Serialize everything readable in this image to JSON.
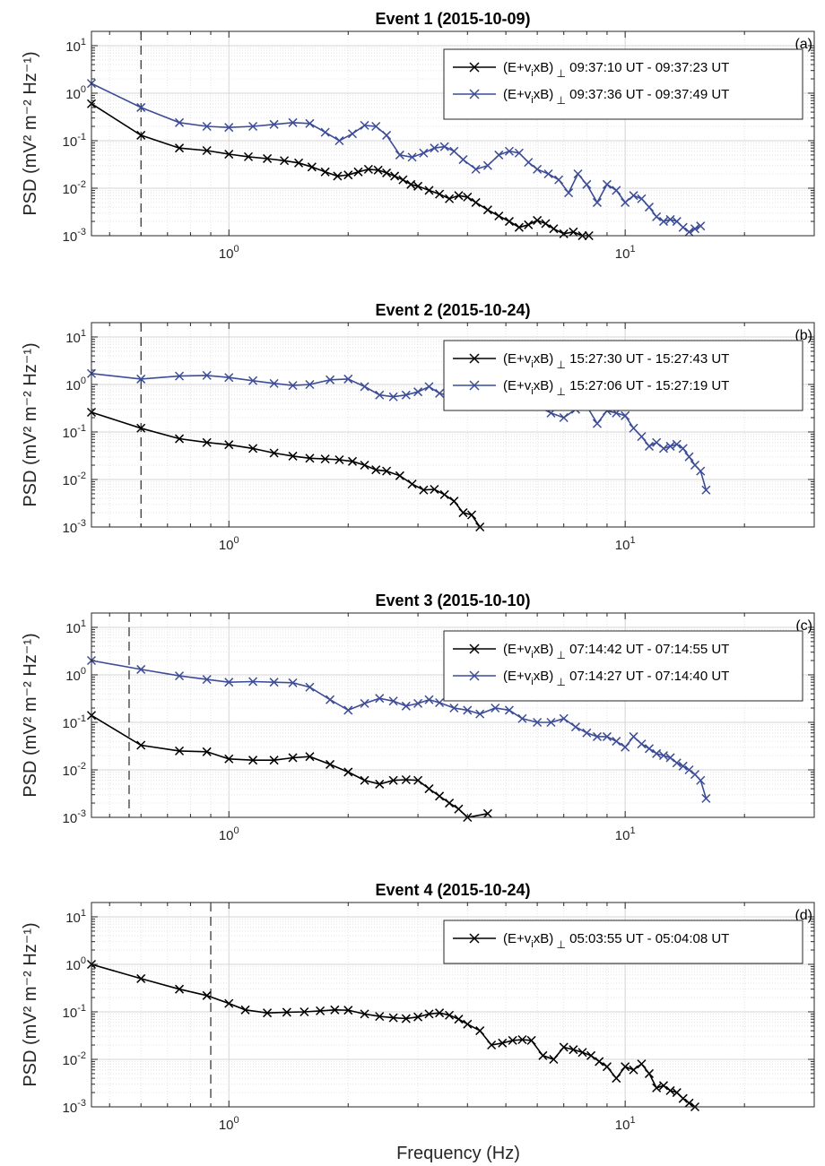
{
  "figure": {
    "xlabel": "Frequency (Hz)"
  },
  "chart_data": [
    {
      "type": "line",
      "title": "Event 1 (2015-10-09)",
      "panel_tag": "(a)",
      "ylabel": "PSD (mV² m⁻² Hz⁻¹)",
      "xlabel": "",
      "xscale": "log",
      "yscale": "log",
      "xlim": [
        0.45,
        30
      ],
      "ylim": [
        0.001,
        20
      ],
      "x_ticks": [
        "10^0",
        "10^1"
      ],
      "y_ticks": [
        "10^-3",
        "10^-2",
        "10^-1",
        "10^0",
        "10^1"
      ],
      "grid": true,
      "legend_position": "top-right",
      "vline_x": 0.6,
      "series": [
        {
          "name": "(E+v_ixB)_⊥ 09:37:10 UT - 09:37:23 UT",
          "color": "#000000",
          "x": [
            0.45,
            0.6,
            0.75,
            0.88,
            1.0,
            1.12,
            1.25,
            1.38,
            1.5,
            1.62,
            1.75,
            1.88,
            2.0,
            2.12,
            2.25,
            2.38,
            2.5,
            2.62,
            2.75,
            2.88,
            3.0,
            3.2,
            3.4,
            3.6,
            3.8,
            4.0,
            4.2,
            4.5,
            4.8,
            5.1,
            5.4,
            5.7,
            6.0,
            6.3,
            6.6,
            7.0,
            7.4,
            7.8,
            8.1
          ],
          "y": [
            0.6,
            0.13,
            0.07,
            0.062,
            0.052,
            0.046,
            0.042,
            0.038,
            0.034,
            0.028,
            0.022,
            0.018,
            0.019,
            0.022,
            0.025,
            0.024,
            0.021,
            0.018,
            0.015,
            0.012,
            0.011,
            0.009,
            0.0075,
            0.006,
            0.007,
            0.0065,
            0.005,
            0.0035,
            0.0026,
            0.002,
            0.0015,
            0.0017,
            0.0021,
            0.0018,
            0.0014,
            0.0011,
            0.0012,
            0.001,
            0.001
          ]
        },
        {
          "name": "(E+v_ixB)_⊥ 09:37:36 UT - 09:37:49 UT",
          "color": "#3c4c97",
          "x": [
            0.45,
            0.6,
            0.75,
            0.88,
            1.0,
            1.15,
            1.3,
            1.45,
            1.6,
            1.75,
            1.9,
            2.05,
            2.2,
            2.35,
            2.5,
            2.7,
            2.9,
            3.1,
            3.3,
            3.5,
            3.7,
            3.9,
            4.2,
            4.5,
            4.8,
            5.1,
            5.4,
            5.7,
            6.0,
            6.4,
            6.8,
            7.2,
            7.6,
            8.0,
            8.5,
            9.0,
            9.5,
            10.0,
            10.5,
            11.0,
            11.5,
            12.0,
            12.5,
            13.0,
            13.5,
            14.0,
            14.5,
            15.0,
            15.5
          ],
          "y": [
            1.6,
            0.5,
            0.24,
            0.2,
            0.19,
            0.2,
            0.22,
            0.24,
            0.23,
            0.15,
            0.1,
            0.14,
            0.21,
            0.2,
            0.13,
            0.05,
            0.045,
            0.055,
            0.07,
            0.075,
            0.06,
            0.04,
            0.025,
            0.03,
            0.05,
            0.06,
            0.055,
            0.035,
            0.025,
            0.02,
            0.015,
            0.008,
            0.02,
            0.012,
            0.005,
            0.012,
            0.009,
            0.005,
            0.007,
            0.006,
            0.004,
            0.0025,
            0.002,
            0.0022,
            0.002,
            0.0015,
            0.0012,
            0.0014,
            0.0016
          ]
        }
      ]
    },
    {
      "type": "line",
      "title": "Event 2 (2015-10-24)",
      "panel_tag": "(b)",
      "ylabel": "PSD (mV² m⁻² Hz⁻¹)",
      "xlabel": "",
      "xscale": "log",
      "yscale": "log",
      "xlim": [
        0.45,
        30
      ],
      "ylim": [
        0.001,
        20
      ],
      "x_ticks": [
        "10^0",
        "10^1"
      ],
      "y_ticks": [
        "10^-3",
        "10^-2",
        "10^-1",
        "10^0",
        "10^1"
      ],
      "grid": true,
      "legend_position": "top-right",
      "vline_x": 0.6,
      "series": [
        {
          "name": "(E+v_ixB)_⊥ 15:27:30 UT - 15:27:43 UT",
          "color": "#000000",
          "x": [
            0.45,
            0.6,
            0.75,
            0.88,
            1.0,
            1.15,
            1.3,
            1.45,
            1.6,
            1.75,
            1.9,
            2.05,
            2.2,
            2.35,
            2.5,
            2.7,
            2.9,
            3.1,
            3.3,
            3.5,
            3.7,
            3.9,
            4.1,
            4.3
          ],
          "y": [
            0.26,
            0.12,
            0.072,
            0.06,
            0.054,
            0.045,
            0.036,
            0.031,
            0.028,
            0.027,
            0.026,
            0.024,
            0.02,
            0.016,
            0.015,
            0.012,
            0.008,
            0.006,
            0.0062,
            0.0048,
            0.0035,
            0.002,
            0.0018,
            0.001
          ]
        },
        {
          "name": "(E+v_ixB)_⊥ 15:27:06 UT - 15:27:19 UT",
          "color": "#3c4c97",
          "x": [
            0.45,
            0.6,
            0.75,
            0.88,
            1.0,
            1.15,
            1.3,
            1.45,
            1.6,
            1.8,
            2.0,
            2.2,
            2.4,
            2.6,
            2.8,
            3.0,
            3.2,
            3.4,
            3.7,
            4.0,
            4.3,
            4.7,
            5.1,
            5.5,
            6.0,
            6.5,
            7.0,
            7.5,
            8.0,
            8.5,
            9.0,
            9.5,
            10.0,
            10.5,
            11.0,
            11.5,
            12.0,
            12.5,
            13.0,
            13.5,
            14.0,
            14.5,
            15.0,
            15.5,
            16.0
          ],
          "y": [
            1.7,
            1.3,
            1.5,
            1.55,
            1.4,
            1.2,
            1.05,
            0.95,
            1.0,
            1.25,
            1.3,
            0.9,
            0.6,
            0.55,
            0.6,
            0.7,
            0.9,
            0.65,
            0.55,
            0.35,
            0.4,
            0.55,
            0.8,
            0.5,
            0.35,
            0.25,
            0.2,
            0.3,
            0.35,
            0.15,
            0.28,
            0.25,
            0.22,
            0.12,
            0.08,
            0.05,
            0.06,
            0.045,
            0.05,
            0.055,
            0.045,
            0.03,
            0.02,
            0.015,
            0.006
          ]
        }
      ]
    },
    {
      "type": "line",
      "title": "Event 3 (2015-10-10)",
      "panel_tag": "(c)",
      "ylabel": "PSD (mV² m⁻² Hz⁻¹)",
      "xlabel": "",
      "xscale": "log",
      "yscale": "log",
      "xlim": [
        0.45,
        30
      ],
      "ylim": [
        0.001,
        20
      ],
      "x_ticks": [
        "10^0",
        "10^1"
      ],
      "y_ticks": [
        "10^-3",
        "10^-2",
        "10^-1",
        "10^0",
        "10^1"
      ],
      "grid": true,
      "legend_position": "top-right",
      "vline_x": 0.56,
      "series": [
        {
          "name": "(E+v_ixB)_⊥ 07:14:42 UT - 07:14:55 UT",
          "color": "#000000",
          "x": [
            0.45,
            0.6,
            0.75,
            0.88,
            1.0,
            1.15,
            1.3,
            1.45,
            1.6,
            1.8,
            2.0,
            2.2,
            2.4,
            2.6,
            2.8,
            3.0,
            3.2,
            3.4,
            3.6,
            3.8,
            4.0,
            4.5
          ],
          "y": [
            0.14,
            0.033,
            0.025,
            0.024,
            0.017,
            0.016,
            0.016,
            0.018,
            0.019,
            0.013,
            0.009,
            0.006,
            0.005,
            0.006,
            0.0062,
            0.006,
            0.004,
            0.0028,
            0.002,
            0.0015,
            0.001,
            0.0012
          ]
        },
        {
          "name": "(E+v_ixB)_⊥ 07:14:27 UT - 07:14:40 UT",
          "color": "#3c4c97",
          "x": [
            0.45,
            0.6,
            0.75,
            0.88,
            1.0,
            1.15,
            1.3,
            1.45,
            1.6,
            1.8,
            2.0,
            2.2,
            2.4,
            2.6,
            2.8,
            3.0,
            3.2,
            3.4,
            3.7,
            4.0,
            4.3,
            4.7,
            5.1,
            5.5,
            6.0,
            6.5,
            7.0,
            7.5,
            8.0,
            8.5,
            9.0,
            9.5,
            10.0,
            10.5,
            11.0,
            11.5,
            12.0,
            12.5,
            13.0,
            13.5,
            14.0,
            14.5,
            15.0,
            15.5,
            16.0
          ],
          "y": [
            2.0,
            1.3,
            0.95,
            0.8,
            0.7,
            0.72,
            0.7,
            0.68,
            0.55,
            0.3,
            0.18,
            0.25,
            0.32,
            0.28,
            0.22,
            0.25,
            0.3,
            0.26,
            0.2,
            0.18,
            0.15,
            0.2,
            0.18,
            0.12,
            0.1,
            0.1,
            0.12,
            0.08,
            0.06,
            0.05,
            0.05,
            0.04,
            0.03,
            0.05,
            0.035,
            0.028,
            0.022,
            0.02,
            0.018,
            0.014,
            0.012,
            0.01,
            0.008,
            0.006,
            0.0025
          ]
        }
      ]
    },
    {
      "type": "line",
      "title": "Event 4 (2015-10-24)",
      "panel_tag": "(d)",
      "ylabel": "PSD (mV² m⁻² Hz⁻¹)",
      "xlabel": "Frequency (Hz)",
      "xscale": "log",
      "yscale": "log",
      "xlim": [
        0.45,
        30
      ],
      "ylim": [
        0.001,
        20
      ],
      "x_ticks": [
        "10^0",
        "10^1"
      ],
      "y_ticks": [
        "10^-3",
        "10^-2",
        "10^-1",
        "10^0",
        "10^1"
      ],
      "grid": true,
      "legend_position": "top-right",
      "vline_x": 0.9,
      "series": [
        {
          "name": "(E+v_ixB)_⊥ 05:03:55 UT - 05:04:08 UT",
          "color": "#000000",
          "x": [
            0.45,
            0.6,
            0.75,
            0.88,
            1.0,
            1.1,
            1.25,
            1.4,
            1.55,
            1.7,
            1.85,
            2.0,
            2.2,
            2.4,
            2.6,
            2.8,
            3.0,
            3.2,
            3.4,
            3.6,
            3.8,
            4.0,
            4.3,
            4.6,
            4.9,
            5.2,
            5.5,
            5.8,
            6.2,
            6.6,
            7.0,
            7.4,
            7.8,
            8.2,
            8.6,
            9.0,
            9.5,
            10.0,
            10.5,
            11.0,
            11.5,
            12.0,
            12.5,
            13.0,
            13.5,
            14.0,
            14.5,
            15.0
          ],
          "y": [
            1.0,
            0.5,
            0.3,
            0.22,
            0.15,
            0.11,
            0.095,
            0.098,
            0.1,
            0.105,
            0.11,
            0.108,
            0.09,
            0.08,
            0.075,
            0.072,
            0.078,
            0.09,
            0.095,
            0.085,
            0.07,
            0.055,
            0.04,
            0.02,
            0.022,
            0.025,
            0.026,
            0.025,
            0.012,
            0.01,
            0.018,
            0.016,
            0.014,
            0.012,
            0.009,
            0.007,
            0.004,
            0.007,
            0.006,
            0.008,
            0.005,
            0.0025,
            0.0028,
            0.0022,
            0.002,
            0.0015,
            0.0012,
            0.001
          ]
        }
      ]
    }
  ]
}
